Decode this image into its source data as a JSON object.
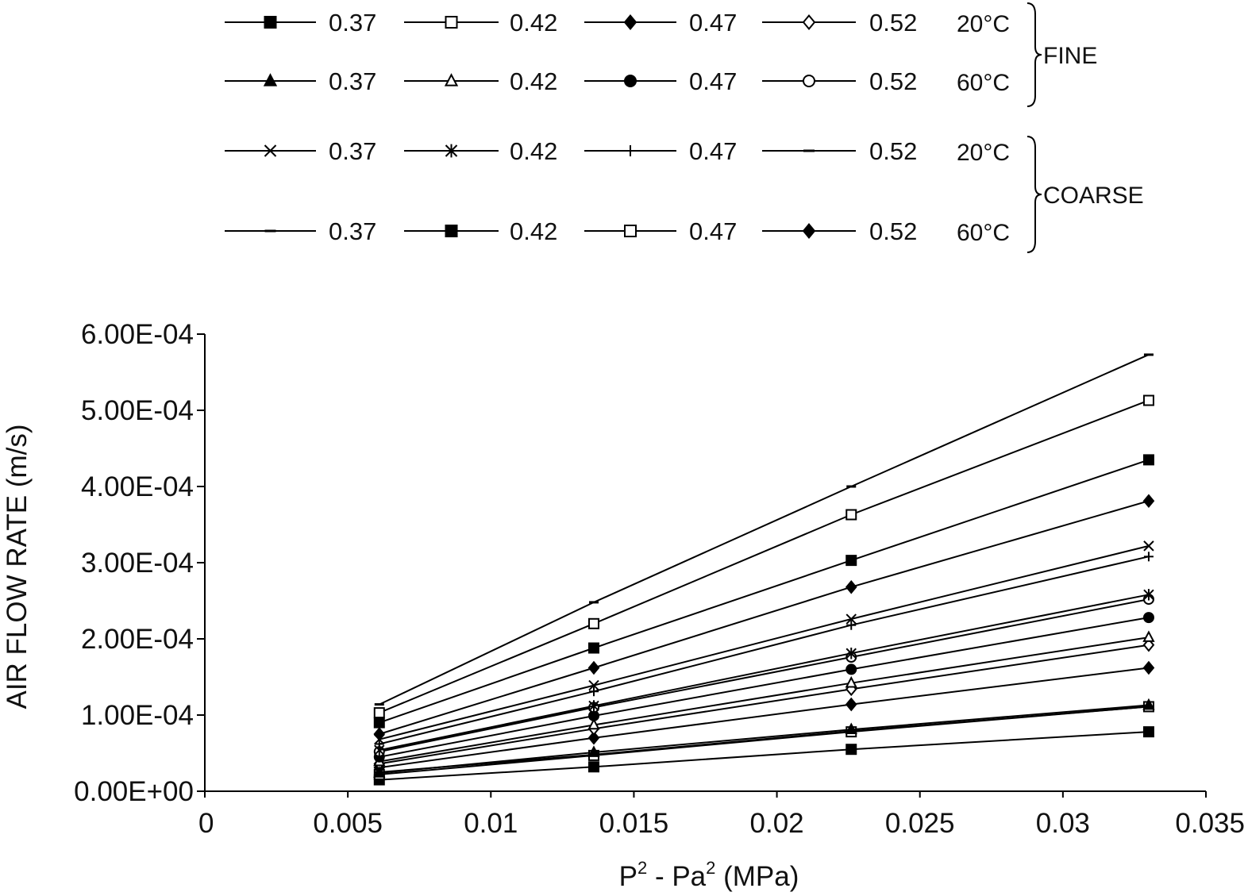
{
  "chart_data": {
    "type": "line",
    "xlabel": {
      "parts": [
        "P",
        "2",
        " - Pa",
        "2",
        " (MPa)"
      ]
    },
    "ylabel": "AIR FLOW RATE  (m/s)",
    "x_ticks": [
      "0",
      "0.005",
      "0.01",
      "0.015",
      "0.02",
      "0.025",
      "0.03",
      "0.035"
    ],
    "x_tick_values": [
      0,
      0.005,
      0.01,
      0.015,
      0.02,
      0.025,
      0.03,
      0.035
    ],
    "y_ticks": [
      "0.00E+00",
      "1.00E-04",
      "2.00E-04",
      "3.00E-04",
      "4.00E-04",
      "5.00E-04",
      "6.00E-04"
    ],
    "y_tick_values": [
      0,
      0.0001,
      0.0002,
      0.0003,
      0.0004,
      0.0005,
      0.0006
    ],
    "xlim": [
      0,
      0.035
    ],
    "ylim": [
      0,
      0.0006
    ],
    "grid": false,
    "legend_position": "top",
    "legend_groups": [
      {
        "label": "FINE",
        "rows": [
          0,
          1
        ]
      },
      {
        "label": "COARSE",
        "rows": [
          2,
          3
        ]
      }
    ],
    "legend_rows": [
      {
        "temp": "20°C",
        "series": [
          0,
          1,
          2,
          3
        ]
      },
      {
        "temp": "60°C",
        "series": [
          4,
          5,
          6,
          7
        ]
      },
      {
        "temp": "20°C",
        "series": [
          8,
          9,
          10,
          11
        ]
      },
      {
        "temp": "60°C",
        "series": [
          12,
          13,
          14,
          15
        ]
      }
    ],
    "x": [
      0.0061,
      0.0136,
      0.0226,
      0.033
    ],
    "series": [
      {
        "name": "0.37",
        "marker": "square-filled",
        "values": [
          1.5e-05,
          3.2e-05,
          5.5e-05,
          7.8e-05
        ]
      },
      {
        "name": "0.42",
        "marker": "square-open",
        "values": [
          2.2e-05,
          4.7e-05,
          7.8e-05,
          0.000111
        ]
      },
      {
        "name": "0.47",
        "marker": "diamond-filled",
        "values": [
          3.1e-05,
          7e-05,
          0.000114,
          0.000162
        ]
      },
      {
        "name": "0.52",
        "marker": "diamond-open",
        "values": [
          3.6e-05,
          8.2e-05,
          0.000134,
          0.000192
        ]
      },
      {
        "name": "0.37",
        "marker": "triangle-filled",
        "values": [
          2.4e-05,
          5.1e-05,
          8.1e-05,
          0.000113
        ]
      },
      {
        "name": "0.42",
        "marker": "triangle-open",
        "values": [
          3.9e-05,
          8.7e-05,
          0.000142,
          0.000202
        ]
      },
      {
        "name": "0.47",
        "marker": "circle-filled",
        "values": [
          4.5e-05,
          9.9e-05,
          0.00016,
          0.000228
        ]
      },
      {
        "name": "0.52",
        "marker": "circle-open",
        "values": [
          5.2e-05,
          0.00011,
          0.000176,
          0.000252
        ]
      },
      {
        "name": "0.37",
        "marker": "x",
        "values": [
          6.8e-05,
          0.000139,
          0.000226,
          0.000322
        ]
      },
      {
        "name": "0.42",
        "marker": "star",
        "values": [
          5.4e-05,
          0.000112,
          0.000181,
          0.000258
        ]
      },
      {
        "name": "0.47",
        "marker": "plus",
        "values": [
          6.2e-05,
          0.000131,
          0.000218,
          0.000308
        ]
      },
      {
        "name": "0.52",
        "marker": "dash",
        "values": [
          0.000114,
          0.000248,
          0.0004,
          0.000573
        ]
      },
      {
        "name": "0.37",
        "marker": "dash",
        "values": [
          2.5e-05,
          4.8e-05,
          7.9e-05,
          0.000111
        ]
      },
      {
        "name": "0.42",
        "marker": "square-filled",
        "values": [
          9e-05,
          0.000188,
          0.000303,
          0.000435
        ]
      },
      {
        "name": "0.47",
        "marker": "square-open",
        "values": [
          0.000103,
          0.00022,
          0.000363,
          0.000513
        ]
      },
      {
        "name": "0.52",
        "marker": "diamond-filled",
        "values": [
          7.5e-05,
          0.000162,
          0.000268,
          0.000381
        ]
      }
    ]
  }
}
